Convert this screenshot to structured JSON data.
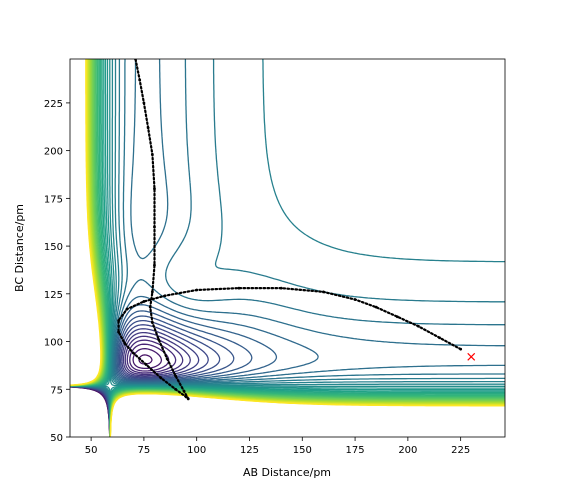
{
  "chart_data": {
    "type": "line",
    "x_label": "AB Distance/pm",
    "y_label": "BC Distance/pm",
    "xlim": [
      40,
      246
    ],
    "ylim": [
      50,
      248
    ],
    "xticks": [
      50,
      75,
      100,
      125,
      150,
      175,
      200,
      225
    ],
    "yticks": [
      50,
      75,
      100,
      125,
      150,
      175,
      200,
      225
    ],
    "series": [
      {
        "color": "#000000",
        "marker": "dot",
        "x": [
          225,
          215,
          205,
          195,
          185,
          175,
          160,
          140,
          120,
          100,
          85,
          75,
          67,
          63,
          63,
          66,
          70,
          76,
          83,
          90,
          95,
          96,
          94,
          90,
          86,
          82,
          79,
          78,
          79,
          80,
          80,
          80,
          79,
          77,
          75,
          73,
          71
        ],
        "values": [
          96,
          102,
          108,
          113,
          118,
          122,
          126,
          128,
          128,
          127,
          124,
          121,
          117,
          111,
          105,
          99,
          94,
          88,
          81,
          75,
          71,
          70,
          74,
          82,
          91,
          101,
          110,
          118,
          126,
          140,
          160,
          180,
          198,
          212,
          225,
          237,
          248
        ]
      },
      {
        "color": "#ff0000",
        "marker": "x",
        "x": [
          230
        ],
        "values": [
          92
        ]
      }
    ]
  }
}
